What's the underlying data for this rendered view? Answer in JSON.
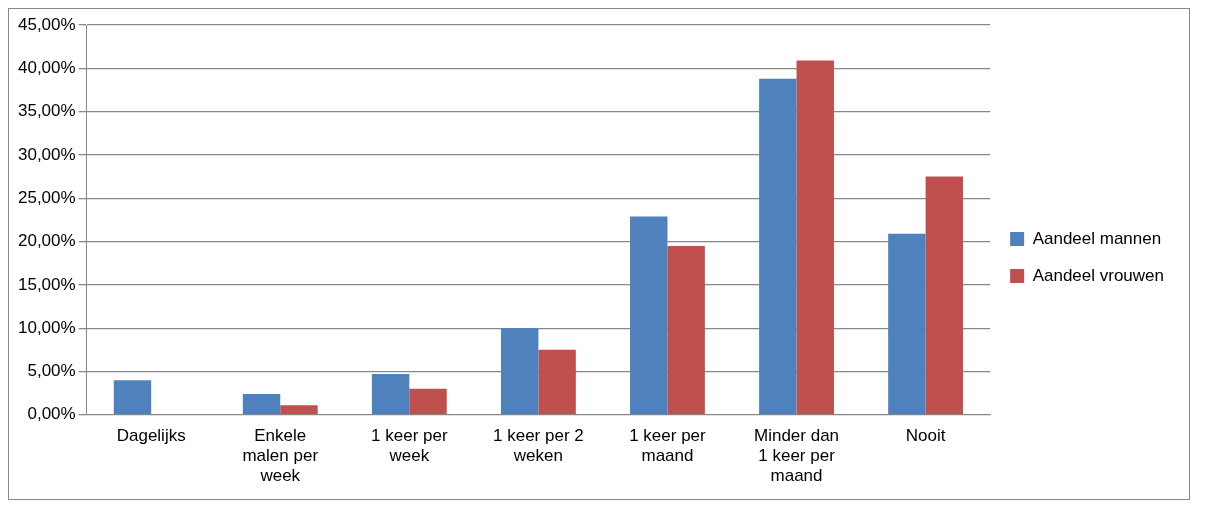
{
  "chart_data": {
    "type": "bar",
    "categories": [
      "Dagelijks",
      "Enkele malen per week",
      "1 keer per week",
      "1 keer per 2 weken",
      "1 keer per maand",
      "Minder dan 1 keer per maand",
      "Nooit"
    ],
    "series": [
      {
        "name": "Aandeel mannen",
        "color": "#4f81bd",
        "values": [
          4.0,
          2.4,
          4.7,
          10.0,
          22.9,
          38.8,
          20.9
        ]
      },
      {
        "name": "Aandeel vrouwen",
        "color": "#c0504d",
        "values": [
          0,
          1.1,
          3.0,
          7.5,
          19.5,
          40.9,
          27.5
        ]
      }
    ],
    "ylim": [
      0,
      45
    ],
    "yticks": [
      {
        "value": 0,
        "label": "0,00%"
      },
      {
        "value": 5,
        "label": "5,00%"
      },
      {
        "value": 10,
        "label": "10,00%"
      },
      {
        "value": 15,
        "label": "15,00%"
      },
      {
        "value": 20,
        "label": "20,00%"
      },
      {
        "value": 25,
        "label": "25,00%"
      },
      {
        "value": 30,
        "label": "30,00%"
      },
      {
        "value": 35,
        "label": "35,00%"
      },
      {
        "value": 40,
        "label": "40,00%"
      },
      {
        "value": 45,
        "label": "45,00%"
      }
    ],
    "grid": "y",
    "legend": "right"
  }
}
